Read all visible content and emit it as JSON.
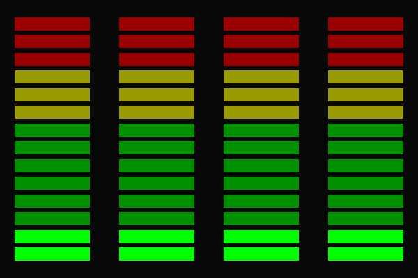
{
  "meter": {
    "segments_per_channel": 14,
    "zones": [
      {
        "name": "red",
        "count": 3,
        "dim_color": "#990000",
        "lit_color": "#ff0000"
      },
      {
        "name": "yellow",
        "count": 3,
        "dim_color": "#999900",
        "lit_color": "#ffff00"
      },
      {
        "name": "green",
        "count": 8,
        "dim_color": "#009000",
        "lit_color": "#00ff00"
      }
    ],
    "background": "#080808",
    "channels": [
      {
        "lit_segments": 2
      },
      {
        "lit_segments": 2
      },
      {
        "lit_segments": 2
      },
      {
        "lit_segments": 2
      }
    ]
  }
}
